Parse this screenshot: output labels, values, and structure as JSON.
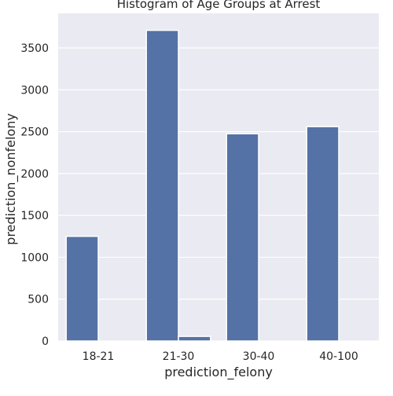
{
  "chart_data": {
    "type": "bar",
    "title": "Histogram of Age Groups at Arrest",
    "xlabel": "prediction_felony",
    "ylabel": "prediction_nonfelony",
    "categories": [
      "18-21",
      "21-30",
      "30-40",
      "40-100"
    ],
    "series": [
      {
        "values": [
          1250,
          3710,
          2475,
          2560
        ]
      },
      {
        "values": [
          0,
          55,
          0,
          0
        ]
      }
    ],
    "ylim": [
      0,
      3600
    ],
    "yticks": [
      0,
      500,
      1000,
      1500,
      2000,
      2500,
      3000,
      3500
    ],
    "grid": true,
    "legend": "none",
    "colors": {
      "plot_background": "#EAEAF2",
      "bar": "#5572A6",
      "grid": "#FFFFFF"
    }
  }
}
